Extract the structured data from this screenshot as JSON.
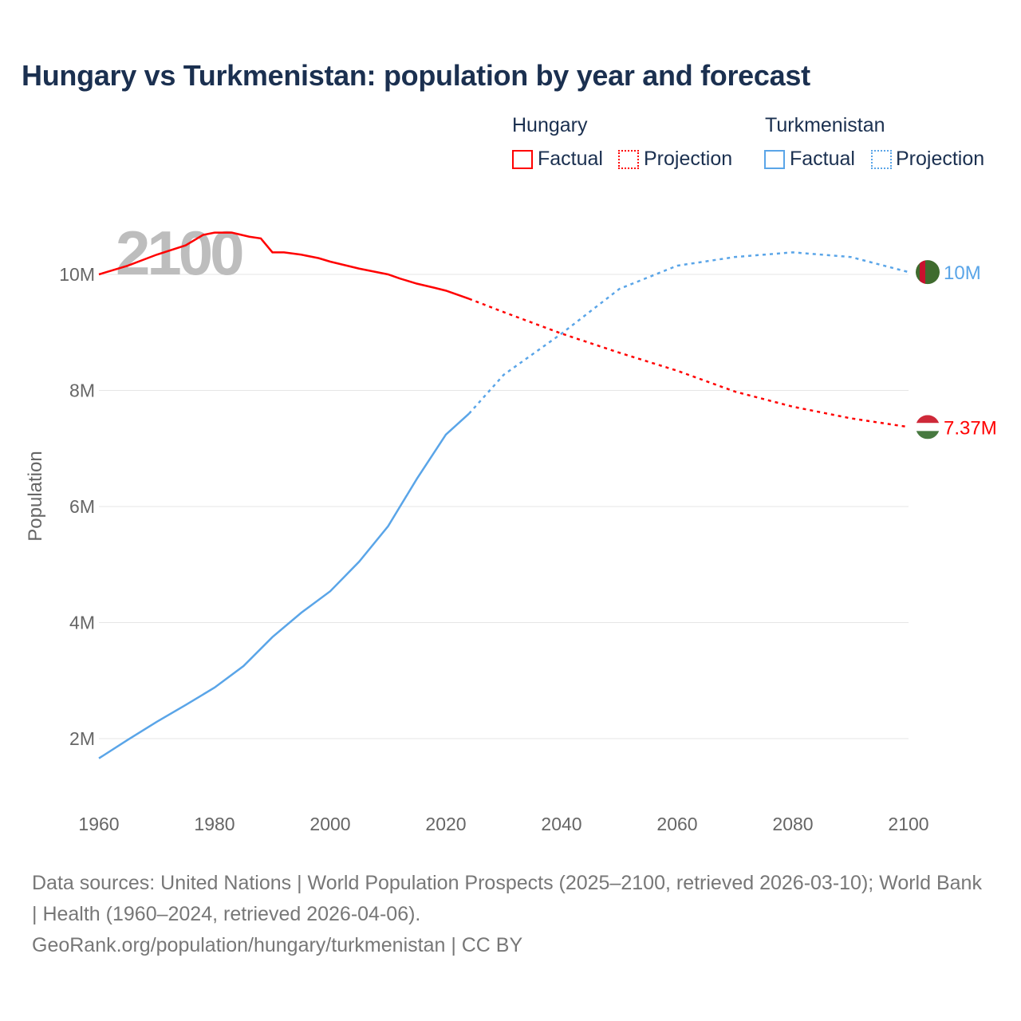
{
  "title": "Hungary vs Turkmenistan: population by year and forecast",
  "legend": {
    "groups": [
      {
        "name": "Hungary",
        "color": "#ff0000",
        "factual": "Factual",
        "projection": "Projection"
      },
      {
        "name": "Turkmenistan",
        "color": "#5aa5e8",
        "factual": "Factual",
        "projection": "Projection"
      }
    ]
  },
  "footer": {
    "line1": "Data sources: United Nations | World Population Prospects (2025–2100, retrieved 2026-03-10); World Bank | Health (1960–2024, retrieved 2026-04-06).",
    "line2": "GeoRank.org/population/hungary/turkmenistan | CC BY"
  },
  "chart_data": {
    "type": "line",
    "title": "Hungary vs Turkmenistan: population by year and forecast",
    "ylabel": "Population",
    "xlabel": "",
    "year_watermark": "2100",
    "xlim": [
      1960,
      2100
    ],
    "ylim": [
      0.8,
      11.2
    ],
    "x_ticks": [
      1960,
      1980,
      2000,
      2020,
      2040,
      2060,
      2080,
      2100
    ],
    "y_ticks": [
      {
        "v": 2,
        "label": "2M"
      },
      {
        "v": 4,
        "label": "4M"
      },
      {
        "v": 6,
        "label": "6M"
      },
      {
        "v": 8,
        "label": "8M"
      },
      {
        "v": 10,
        "label": "10M"
      }
    ],
    "series": [
      {
        "name": "Hungary",
        "color": "#ff0000",
        "end_label": "7.37M",
        "factual": [
          [
            1960,
            10.0
          ],
          [
            1965,
            10.15
          ],
          [
            1970,
            10.34
          ],
          [
            1975,
            10.5
          ],
          [
            1978,
            10.68
          ],
          [
            1980,
            10.72
          ],
          [
            1983,
            10.72
          ],
          [
            1986,
            10.65
          ],
          [
            1988,
            10.62
          ],
          [
            1990,
            10.38
          ],
          [
            1992,
            10.38
          ],
          [
            1995,
            10.34
          ],
          [
            1998,
            10.28
          ],
          [
            2000,
            10.22
          ],
          [
            2005,
            10.1
          ],
          [
            2010,
            10.0
          ],
          [
            2012,
            9.93
          ],
          [
            2015,
            9.84
          ],
          [
            2018,
            9.77
          ],
          [
            2020,
            9.72
          ],
          [
            2022,
            9.65
          ],
          [
            2024,
            9.58
          ]
        ],
        "projection": [
          [
            2024,
            9.58
          ],
          [
            2030,
            9.35
          ],
          [
            2040,
            8.98
          ],
          [
            2050,
            8.65
          ],
          [
            2060,
            8.34
          ],
          [
            2070,
            7.98
          ],
          [
            2080,
            7.72
          ],
          [
            2090,
            7.52
          ],
          [
            2100,
            7.37
          ]
        ]
      },
      {
        "name": "Turkmenistan",
        "color": "#5aa5e8",
        "end_label": "10M",
        "factual": [
          [
            1960,
            1.66
          ],
          [
            1965,
            1.98
          ],
          [
            1970,
            2.29
          ],
          [
            1975,
            2.58
          ],
          [
            1980,
            2.88
          ],
          [
            1985,
            3.25
          ],
          [
            1990,
            3.75
          ],
          [
            1995,
            4.17
          ],
          [
            2000,
            4.54
          ],
          [
            2005,
            5.05
          ],
          [
            2010,
            5.66
          ],
          [
            2015,
            6.48
          ],
          [
            2020,
            7.24
          ],
          [
            2024,
            7.6
          ]
        ],
        "projection": [
          [
            2024,
            7.6
          ],
          [
            2030,
            8.27
          ],
          [
            2040,
            8.98
          ],
          [
            2050,
            9.75
          ],
          [
            2060,
            10.15
          ],
          [
            2070,
            10.3
          ],
          [
            2080,
            10.38
          ],
          [
            2090,
            10.3
          ],
          [
            2100,
            10.04
          ]
        ]
      }
    ]
  }
}
